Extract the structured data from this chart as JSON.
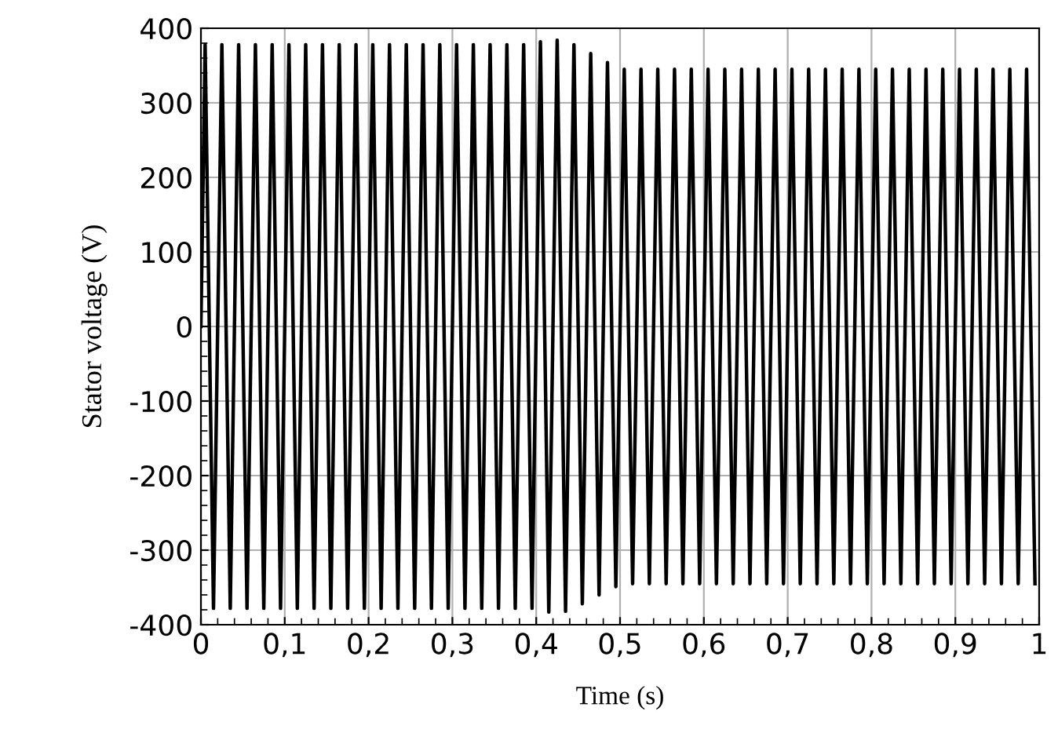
{
  "chart_data": {
    "type": "line",
    "xlabel": "Time (s)",
    "ylabel": "Stator voltage (V)",
    "x": [
      0,
      0.005,
      0.015,
      0.025,
      0.035,
      0.045,
      0.055,
      0.065,
      0.075,
      0.085,
      0.095,
      0.105,
      0.115,
      0.125,
      0.135,
      0.145,
      0.155,
      0.165,
      0.175,
      0.185,
      0.195,
      0.205,
      0.215,
      0.225,
      0.235,
      0.245,
      0.255,
      0.265,
      0.275,
      0.285,
      0.295,
      0.305,
      0.315,
      0.325,
      0.335,
      0.345,
      0.355,
      0.365,
      0.375,
      0.385,
      0.395,
      0.405,
      0.415,
      0.425,
      0.435,
      0.445,
      0.455,
      0.465,
      0.475,
      0.485,
      0.495,
      0.505,
      0.515,
      0.525,
      0.535,
      0.545,
      0.555,
      0.565,
      0.575,
      0.585,
      0.595,
      0.605,
      0.615,
      0.625,
      0.635,
      0.645,
      0.655,
      0.665,
      0.675,
      0.685,
      0.695,
      0.705,
      0.715,
      0.725,
      0.735,
      0.745,
      0.755,
      0.765,
      0.775,
      0.785,
      0.795,
      0.805,
      0.815,
      0.825,
      0.835,
      0.845,
      0.855,
      0.865,
      0.875,
      0.885,
      0.895,
      0.905,
      0.915,
      0.925,
      0.935,
      0.945,
      0.955,
      0.965,
      0.975,
      0.985,
      0.995
    ],
    "series": [
      {
        "color": "#000000",
        "values": [
          0,
          378,
          -378,
          378,
          -378,
          378,
          -378,
          378,
          -378,
          378,
          -378,
          378,
          -378,
          378,
          -378,
          378,
          -378,
          378,
          -378,
          378,
          -378,
          378,
          -378,
          378,
          -378,
          378,
          -378,
          378,
          -378,
          378,
          -378,
          378,
          -378,
          378,
          -378,
          378,
          -378,
          378,
          -378,
          378,
          -378,
          382,
          -383,
          384,
          -382,
          378,
          -372,
          366,
          -360,
          354,
          -349,
          345,
          -345,
          345,
          -345,
          345,
          -345,
          345,
          -345,
          345,
          -345,
          345,
          -345,
          345,
          -345,
          345,
          -345,
          345,
          -345,
          345,
          -345,
          345,
          -345,
          345,
          -345,
          345,
          -345,
          345,
          -345,
          345,
          -345,
          345,
          -345,
          345,
          -345,
          345,
          -345,
          345,
          -345,
          345,
          -345,
          345,
          -345,
          345,
          -345,
          345,
          -345,
          345,
          -345,
          345,
          -345
        ]
      }
    ],
    "xlim": [
      0,
      1
    ],
    "xticks": [
      0,
      {
        "value": 0.1,
        "label": "0,1"
      },
      {
        "value": 0.2,
        "label": "0,2"
      },
      {
        "value": 0.3,
        "label": "0,3"
      },
      {
        "value": 0.4,
        "label": "0,4"
      },
      {
        "value": 0.5,
        "label": "0,5"
      },
      {
        "value": 0.6,
        "label": "0,6"
      },
      {
        "value": 0.7,
        "label": "0,7"
      },
      {
        "value": 0.8,
        "label": "0,8"
      },
      {
        "value": 0.9,
        "label": "0,9"
      },
      1
    ],
    "ylim": [
      -400,
      400
    ],
    "yticks": [
      -400,
      -300,
      -200,
      -100,
      0,
      100,
      200,
      300,
      400
    ],
    "grid": true,
    "marker": "none",
    "line_style": "solid"
  }
}
